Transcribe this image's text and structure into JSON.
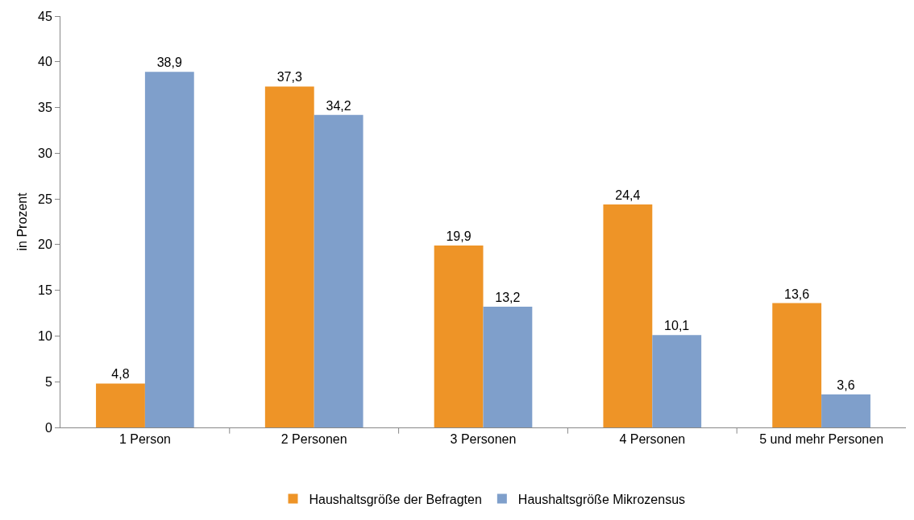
{
  "chart_data": {
    "type": "bar",
    "ylabel": "in Prozent",
    "categories": [
      "1 Person",
      "2 Personen",
      "3 Personen",
      "4 Personen",
      "5 und mehr Personen"
    ],
    "series": [
      {
        "name": "Haushaltsgröße der Befragten",
        "color": "#ee9427",
        "values": [
          4.8,
          37.3,
          19.9,
          24.4,
          13.6
        ],
        "value_labels": [
          "4,8",
          "37,3",
          "19,9",
          "24,4",
          "13,6"
        ]
      },
      {
        "name": "Haushaltsgröße Mikrozensus",
        "color": "#7f9fcb",
        "values": [
          38.9,
          34.2,
          13.2,
          10.1,
          3.6
        ],
        "value_labels": [
          "38,9",
          "34,2",
          "13,2",
          "10,1",
          "3,6"
        ]
      }
    ],
    "ylim": [
      0,
      45
    ],
    "yticks": [
      0,
      5,
      10,
      15,
      20,
      25,
      30,
      35,
      40,
      45
    ],
    "grid": false,
    "legend": "bottom"
  }
}
